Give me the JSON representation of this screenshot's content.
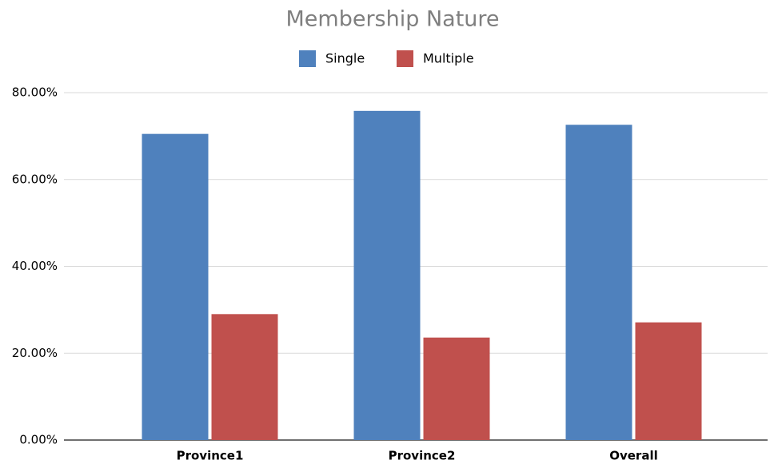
{
  "chart_data": {
    "type": "bar",
    "title": "Membership  Nature",
    "categories": [
      "Province1",
      "Province2",
      "Overall"
    ],
    "series": [
      {
        "name": "Single",
        "color": "#4f81bd",
        "values": [
          70.5,
          75.8,
          72.6
        ]
      },
      {
        "name": "Multiple",
        "color": "#c0504d",
        "values": [
          29.0,
          23.6,
          27.1
        ]
      }
    ],
    "ylim": [
      0,
      80
    ],
    "yticks": [
      {
        "value": 0,
        "label": "0.00%"
      },
      {
        "value": 20,
        "label": "20.00%"
      },
      {
        "value": 40,
        "label": "40.00%"
      },
      {
        "value": 60,
        "label": "60.00%"
      },
      {
        "value": 80,
        "label": "80.00%"
      }
    ],
    "grid": true,
    "legend": "top"
  }
}
